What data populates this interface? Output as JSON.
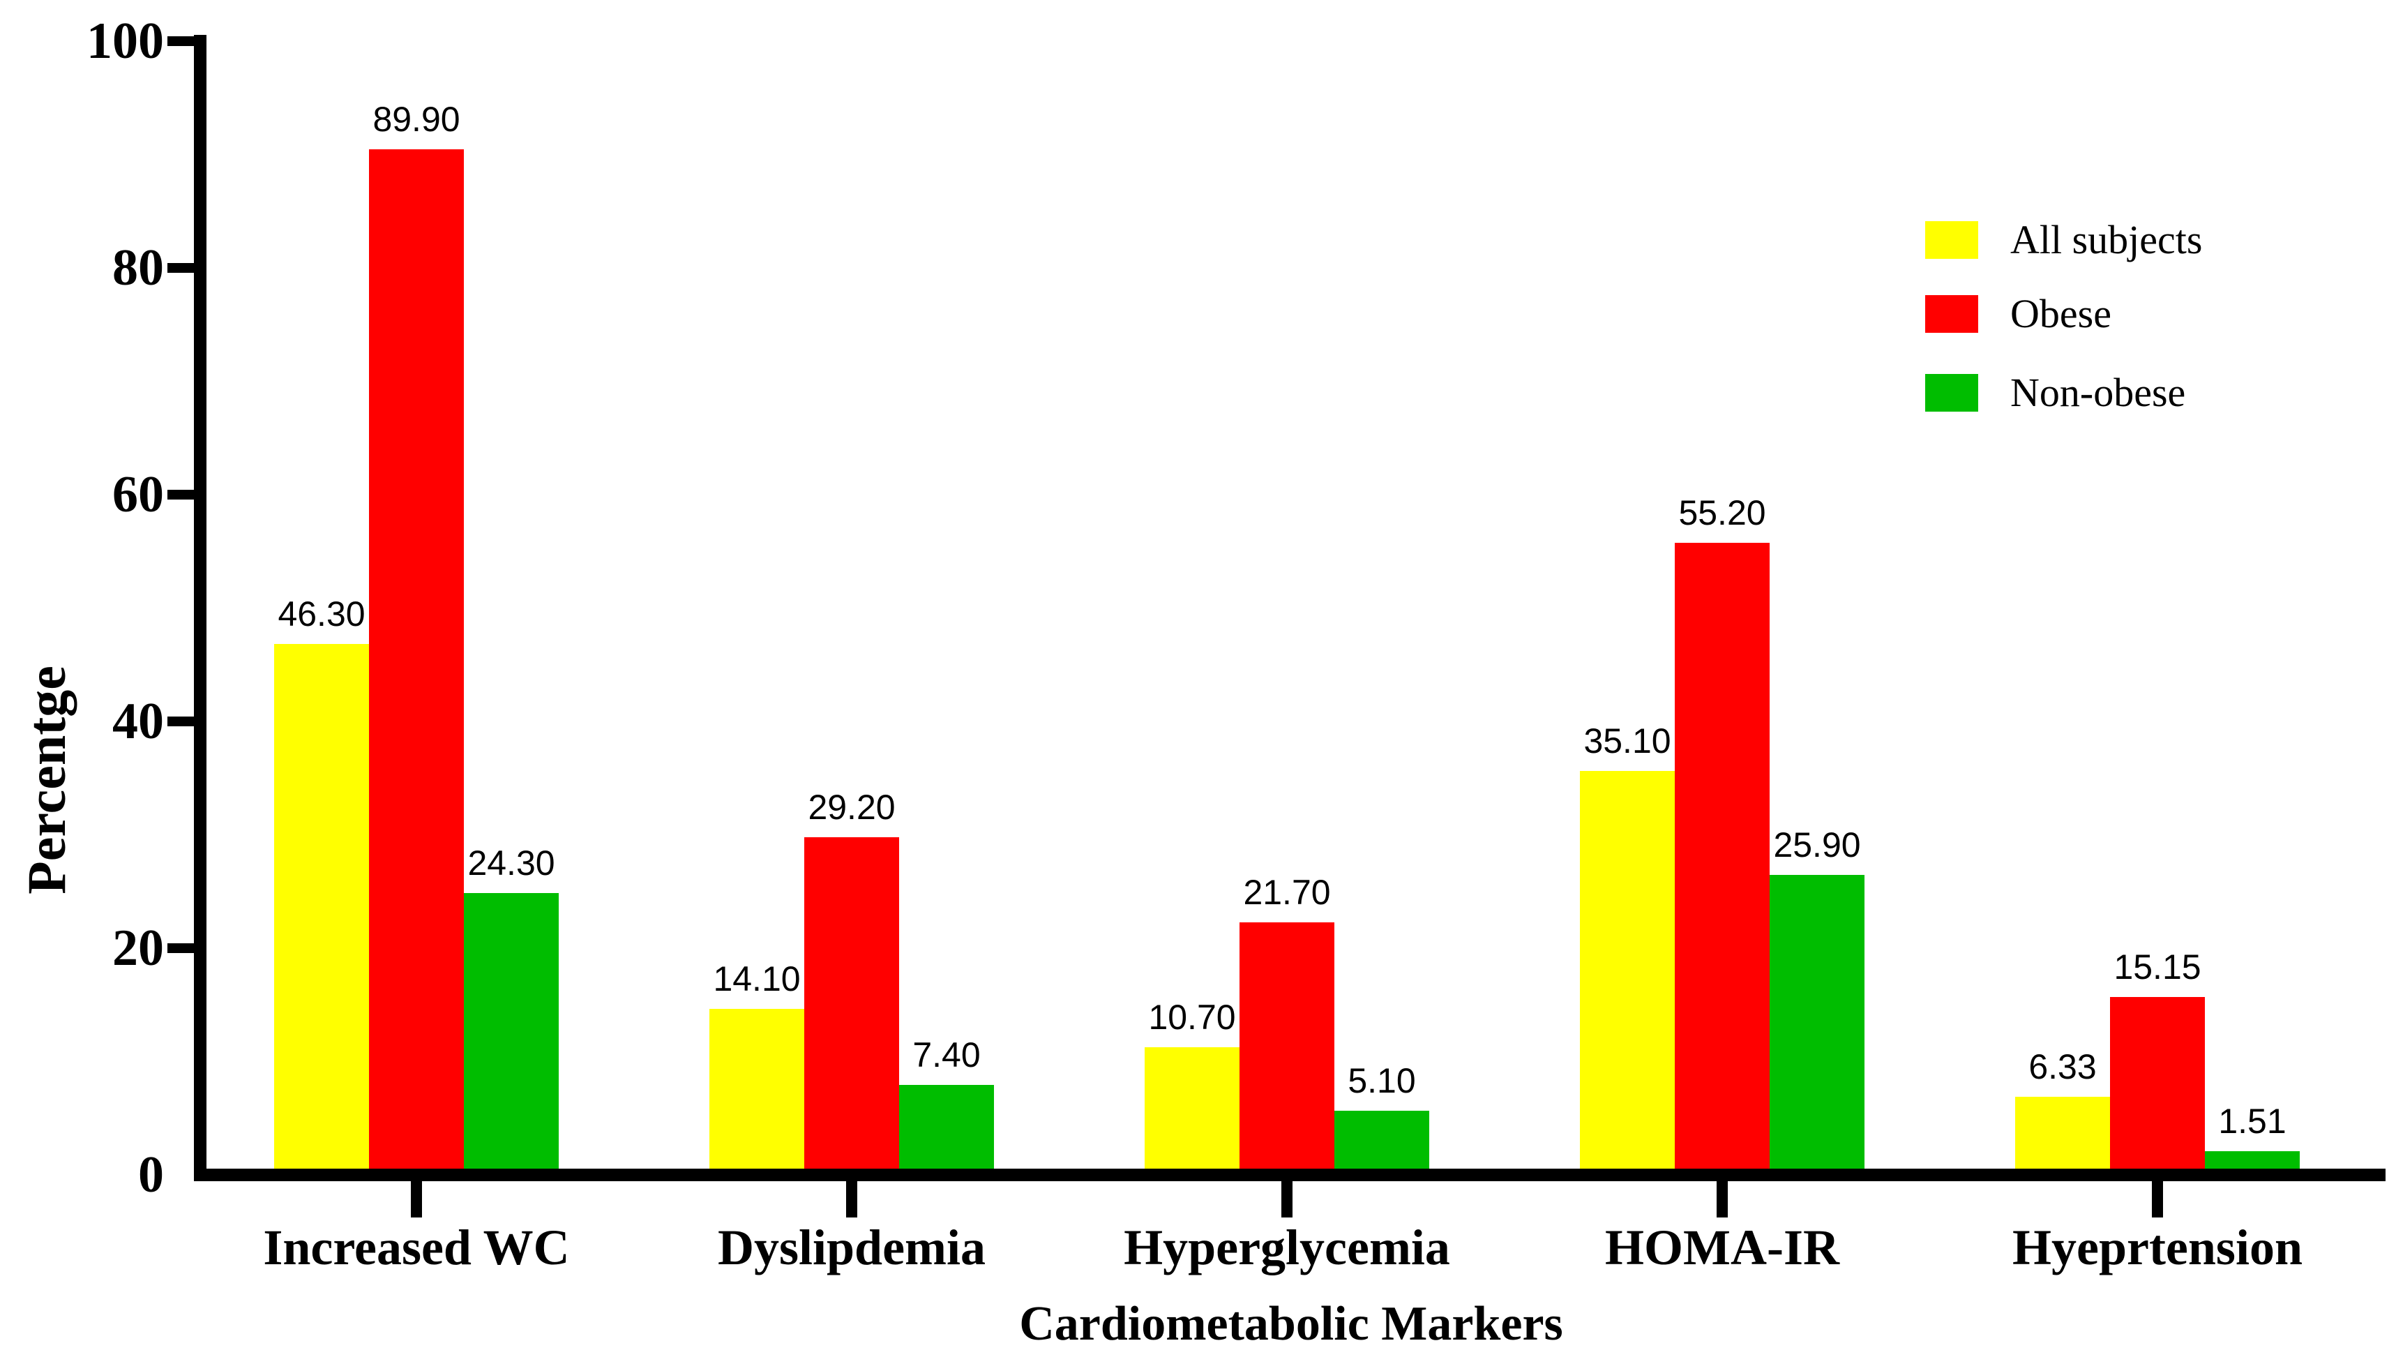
{
  "chart_data": {
    "type": "bar",
    "title": "",
    "xlabel": "Cardiometabolic Markers",
    "ylabel": "Percentge",
    "ylim": [
      0,
      100
    ],
    "y_ticks": [
      0,
      20,
      40,
      60,
      80,
      100
    ],
    "grid": false,
    "legend_position": "upper-right",
    "axis_color": "#000000",
    "categories": [
      "Increased WC",
      "Dyslipdemia",
      "Hyperglycemia",
      "HOMA-IR",
      "Hyeprtension"
    ],
    "series": [
      {
        "name": "All subjects",
        "color": "#FFFF00",
        "values": [
          46.3,
          14.1,
          10.7,
          35.1,
          6.33
        ],
        "labels": [
          "46.30",
          "14.10",
          "10.70",
          "35.10",
          "6.33"
        ]
      },
      {
        "name": "Obese",
        "color": "#FF0000",
        "values": [
          89.9,
          29.2,
          21.7,
          55.2,
          15.15
        ],
        "labels": [
          "89.90",
          "29.20",
          "21.70",
          "55.20",
          "15.15"
        ]
      },
      {
        "name": "Non-obese",
        "color": "#00BD00",
        "values": [
          24.3,
          7.4,
          5.1,
          25.9,
          1.51
        ],
        "labels": [
          "24.30",
          "7.40",
          "5.10",
          "25.90",
          "1.51"
        ]
      }
    ]
  }
}
